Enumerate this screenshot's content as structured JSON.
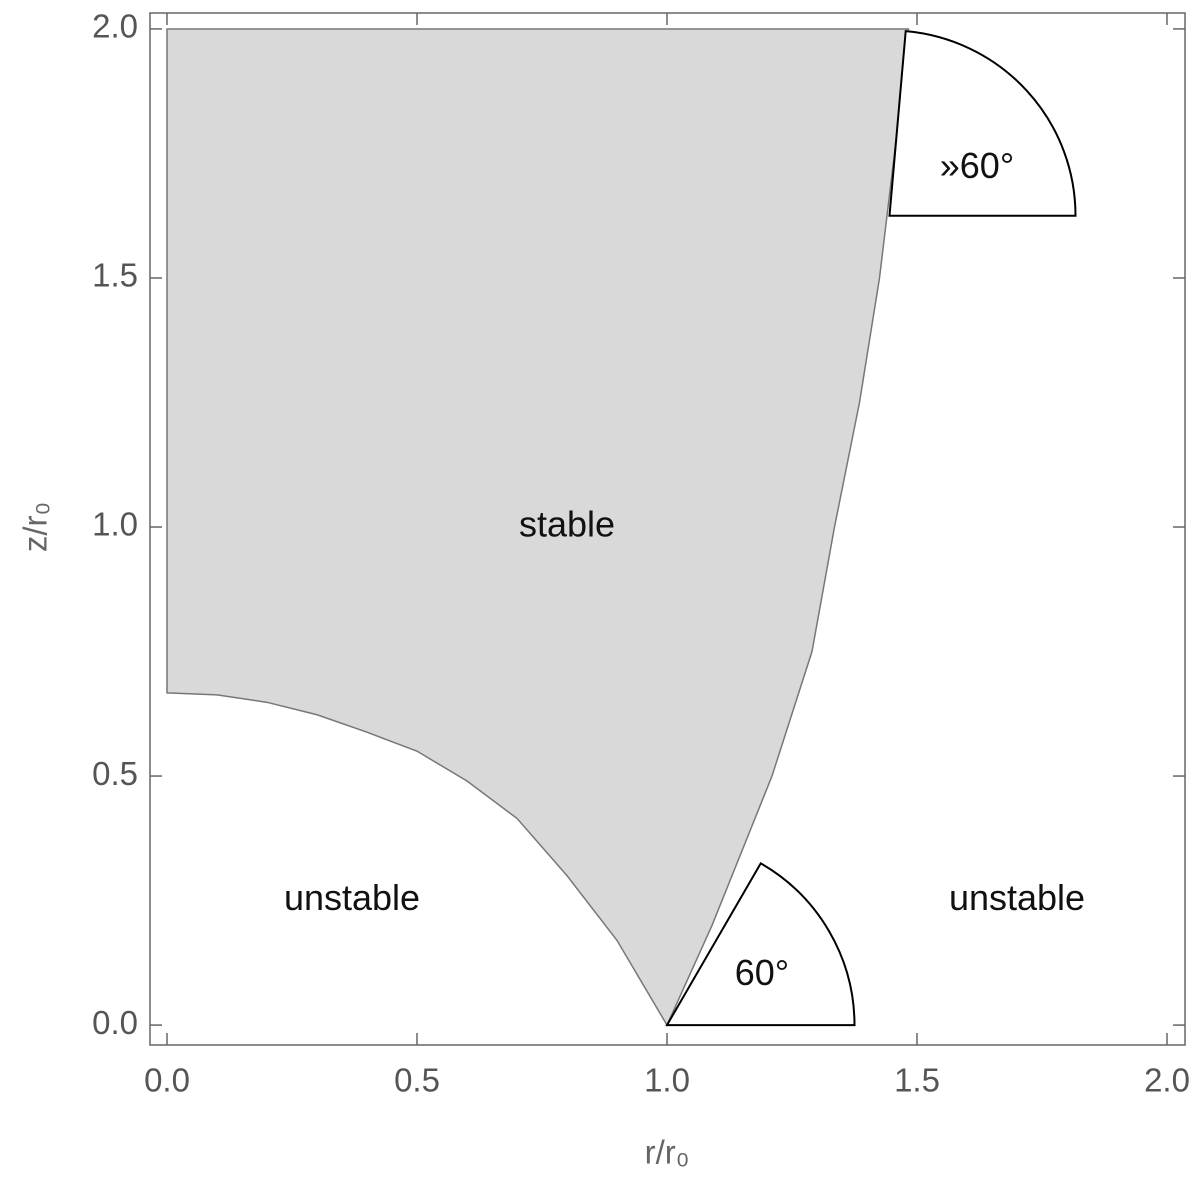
{
  "chart_data": {
    "type": "region",
    "xlabel": "r/r₀",
    "ylabel": "z/r₀",
    "xlim": [
      -0.034,
      2.036
    ],
    "ylim": [
      -0.04,
      2.032
    ],
    "xticks": [
      {
        "value": 0,
        "label": "0.0"
      },
      {
        "value": 0.5,
        "label": "0.5"
      },
      {
        "value": 1,
        "label": "1.0"
      },
      {
        "value": 1.5,
        "label": "1.5"
      },
      {
        "value": 2,
        "label": "2.0"
      }
    ],
    "yticks": [
      {
        "value": 0,
        "label": "0.0"
      },
      {
        "value": 0.5,
        "label": "0.5"
      },
      {
        "value": 1,
        "label": "1.0"
      },
      {
        "value": 1.5,
        "label": "1.5"
      },
      {
        "value": 2,
        "label": "2.0"
      }
    ],
    "region": {
      "color": "#d9d9d9",
      "r": [
        0,
        0.1,
        0.2,
        0.3,
        0.4,
        0.5,
        0.6,
        0.7,
        0.8,
        0.9,
        1.0,
        1.09,
        1.21,
        1.29,
        1.335,
        1.385,
        1.425,
        1.455,
        1.483,
        0
      ],
      "z": [
        0.667,
        0.663,
        0.648,
        0.623,
        0.588,
        0.55,
        0.49,
        0.415,
        0.3,
        0.17,
        0,
        0.2,
        0.5,
        0.75,
        1.0,
        1.25,
        1.5,
        1.75,
        2.0,
        2.0
      ]
    },
    "sectors": [
      {
        "label": "60°",
        "center": [
          1,
          0
        ],
        "radius": 0.375,
        "angles": [
          0,
          60
        ],
        "label_at": [
          1.19,
          0.1
        ]
      },
      {
        "label": "»60°",
        "center": [
          1.445,
          1.625
        ],
        "radius": 0.372,
        "angles": [
          0,
          85
        ],
        "label_at": [
          1.62,
          1.72
        ]
      }
    ],
    "annotations": [
      {
        "text": "stable",
        "at": [
          0.8,
          1.0
        ]
      },
      {
        "text": "unstable",
        "at": [
          0.37,
          0.25
        ]
      },
      {
        "text": "unstable",
        "at": [
          1.7,
          0.25
        ]
      }
    ]
  }
}
